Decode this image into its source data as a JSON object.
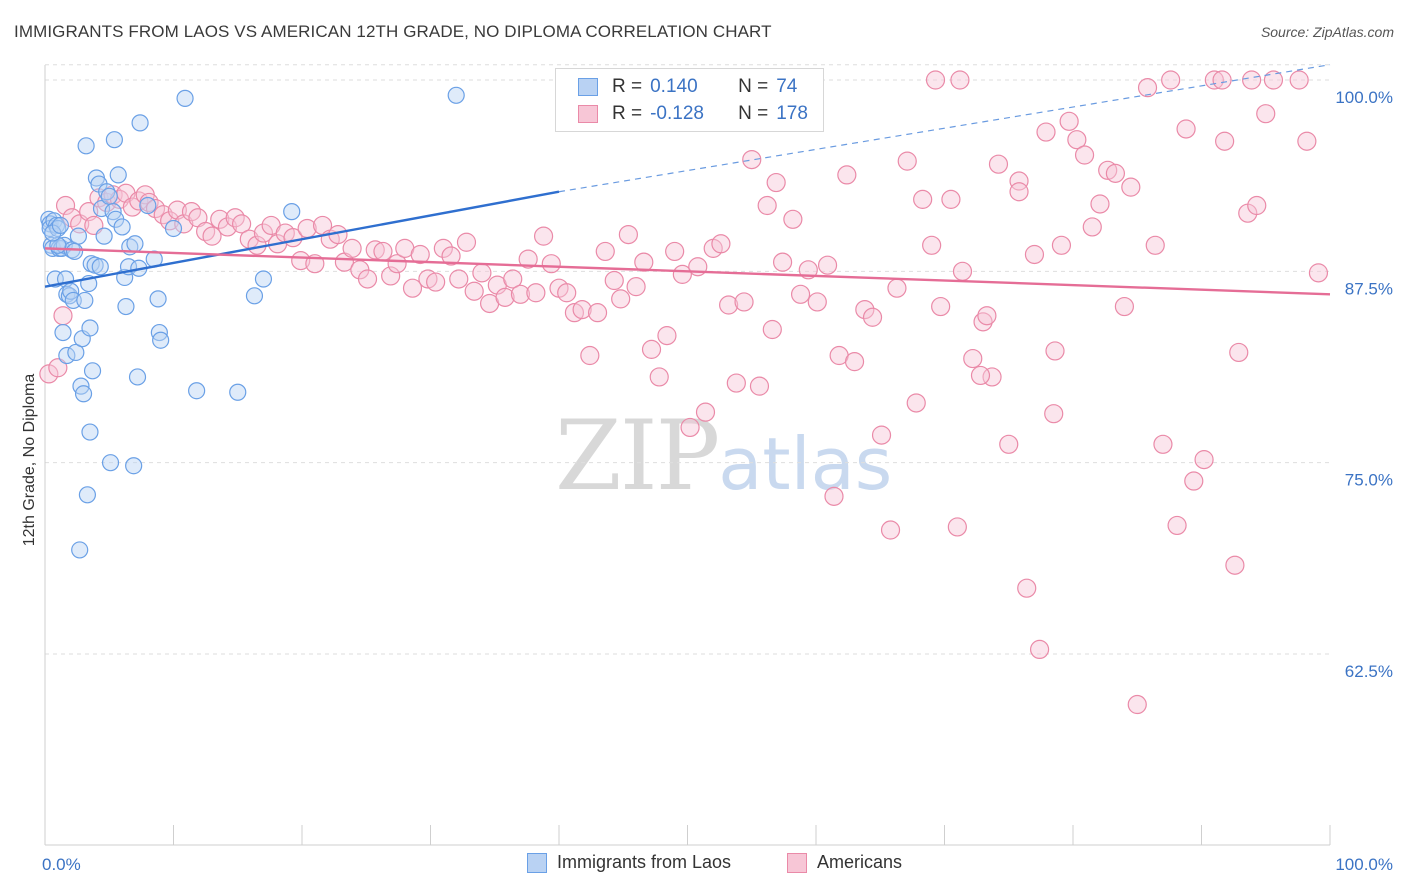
{
  "title": "IMMIGRANTS FROM LAOS VS AMERICAN 12TH GRADE, NO DIPLOMA CORRELATION CHART",
  "source": "Source: ZipAtlas.com",
  "watermark": {
    "zip": "ZIP",
    "atlas": "atlas"
  },
  "legend": {
    "r_label": "R =",
    "n_label": "N =",
    "series": [
      {
        "r": "0.140",
        "n": "74",
        "color": "#6aa0e6",
        "fill": "#b9d2f3"
      },
      {
        "r": "-0.128",
        "n": "178",
        "color": "#ea8aa8",
        "fill": "#f7c6d6"
      }
    ]
  },
  "bottom_legend": [
    "Immigrants from Laos",
    "Americans"
  ],
  "chart_data": {
    "type": "scatter",
    "title": "IMMIGRANTS FROM LAOS VS AMERICAN 12TH GRADE, NO DIPLOMA CORRELATION CHART",
    "ylabel": "12th Grade, No Diploma",
    "xlabel": "",
    "xlim": [
      0,
      100
    ],
    "ylim": [
      50,
      101
    ],
    "x_ticks": [
      "0.0%",
      "100.0%"
    ],
    "y_ticks": [
      {
        "value": 100.0,
        "label": "100.0%"
      },
      {
        "value": 87.5,
        "label": "87.5%"
      },
      {
        "value": 75.0,
        "label": "75.0%"
      },
      {
        "value": 62.5,
        "label": "62.5%"
      }
    ],
    "grid": "horizontal dashed",
    "series": [
      {
        "name": "Immigrants from Laos",
        "color": "#6aa0e6",
        "trend": {
          "x0": 0.0,
          "y0": 86.5,
          "x1": 40.0,
          "y1": 92.7,
          "x_dash_end": 100.0,
          "y_dash_end": 101.0
        },
        "points": [
          [
            0.3,
            90.9
          ],
          [
            0.4,
            90.6
          ],
          [
            0.4,
            90.3
          ],
          [
            0.5,
            89.2
          ],
          [
            0.6,
            89.0
          ],
          [
            0.7,
            90.8
          ],
          [
            0.8,
            87.0
          ],
          [
            0.9,
            90.5
          ],
          [
            1.0,
            90.3
          ],
          [
            1.1,
            89.0
          ],
          [
            1.3,
            89.0
          ],
          [
            1.4,
            83.5
          ],
          [
            1.5,
            89.2
          ],
          [
            1.6,
            87.0
          ],
          [
            1.7,
            86.0
          ],
          [
            1.7,
            82.0
          ],
          [
            1.9,
            85.9
          ],
          [
            2.0,
            86.2
          ],
          [
            2.1,
            88.9
          ],
          [
            2.2,
            85.6
          ],
          [
            2.4,
            82.2
          ],
          [
            2.6,
            89.8
          ],
          [
            2.8,
            80.0
          ],
          [
            2.9,
            83.1
          ],
          [
            3.0,
            79.5
          ],
          [
            3.1,
            85.6
          ],
          [
            3.2,
            95.7
          ],
          [
            3.3,
            72.9
          ],
          [
            3.4,
            86.7
          ],
          [
            3.5,
            77.0
          ],
          [
            3.5,
            83.8
          ],
          [
            3.6,
            88.0
          ],
          [
            3.7,
            81.0
          ],
          [
            3.9,
            87.9
          ],
          [
            4.0,
            93.6
          ],
          [
            4.2,
            93.2
          ],
          [
            4.3,
            87.8
          ],
          [
            4.4,
            91.6
          ],
          [
            4.6,
            89.8
          ],
          [
            4.8,
            92.7
          ],
          [
            5.0,
            92.4
          ],
          [
            5.1,
            75.0
          ],
          [
            5.3,
            91.4
          ],
          [
            5.5,
            90.9
          ],
          [
            5.4,
            96.1
          ],
          [
            5.7,
            93.8
          ],
          [
            6.0,
            90.4
          ],
          [
            6.2,
            87.1
          ],
          [
            6.3,
            85.2
          ],
          [
            6.5,
            87.8
          ],
          [
            6.6,
            89.1
          ],
          [
            6.9,
            74.8
          ],
          [
            7.0,
            89.3
          ],
          [
            7.2,
            80.6
          ],
          [
            7.3,
            87.7
          ],
          [
            7.4,
            97.2
          ],
          [
            8.0,
            91.8
          ],
          [
            8.5,
            88.3
          ],
          [
            8.8,
            85.7
          ],
          [
            8.9,
            83.5
          ],
          [
            9.0,
            83.0
          ],
          [
            10.0,
            90.3
          ],
          [
            10.9,
            98.8
          ],
          [
            11.8,
            79.7
          ],
          [
            15.0,
            79.6
          ],
          [
            16.3,
            85.9
          ],
          [
            17.0,
            87.0
          ],
          [
            19.2,
            91.4
          ],
          [
            32.0,
            99.0
          ],
          [
            2.7,
            69.3
          ],
          [
            1.0,
            89.2
          ],
          [
            2.3,
            88.8
          ],
          [
            0.6,
            90.0
          ],
          [
            1.2,
            90.5
          ]
        ]
      },
      {
        "name": "Americans",
        "color": "#ea8aa8",
        "trend": {
          "x0": 0.0,
          "y0": 89.0,
          "x1": 100.0,
          "y1": 86.0
        },
        "points": [
          [
            0.3,
            80.8
          ],
          [
            1.0,
            81.2
          ],
          [
            1.4,
            84.6
          ],
          [
            1.6,
            91.8
          ],
          [
            2.1,
            91.0
          ],
          [
            2.7,
            90.6
          ],
          [
            3.4,
            91.4
          ],
          [
            3.8,
            90.5
          ],
          [
            4.2,
            92.3
          ],
          [
            4.8,
            92.0
          ],
          [
            5.3,
            92.5
          ],
          [
            5.8,
            92.2
          ],
          [
            6.3,
            92.6
          ],
          [
            6.8,
            91.7
          ],
          [
            7.3,
            92.1
          ],
          [
            7.8,
            92.5
          ],
          [
            8.1,
            92.0
          ],
          [
            8.6,
            91.6
          ],
          [
            9.2,
            91.2
          ],
          [
            9.7,
            90.8
          ],
          [
            10.3,
            91.5
          ],
          [
            10.8,
            90.6
          ],
          [
            11.4,
            91.4
          ],
          [
            11.9,
            91.0
          ],
          [
            12.5,
            90.1
          ],
          [
            13.0,
            89.8
          ],
          [
            13.6,
            90.9
          ],
          [
            14.2,
            90.4
          ],
          [
            14.8,
            91.0
          ],
          [
            15.3,
            90.6
          ],
          [
            15.9,
            89.6
          ],
          [
            16.5,
            89.2
          ],
          [
            17.0,
            90.0
          ],
          [
            17.6,
            90.5
          ],
          [
            18.1,
            89.3
          ],
          [
            18.7,
            90.0
          ],
          [
            19.3,
            89.7
          ],
          [
            19.9,
            88.2
          ],
          [
            20.4,
            90.3
          ],
          [
            21.0,
            88.0
          ],
          [
            21.6,
            90.5
          ],
          [
            22.2,
            89.6
          ],
          [
            22.8,
            89.9
          ],
          [
            23.3,
            88.1
          ],
          [
            23.9,
            89.0
          ],
          [
            24.5,
            87.6
          ],
          [
            25.1,
            87.0
          ],
          [
            25.7,
            88.9
          ],
          [
            26.3,
            88.8
          ],
          [
            26.9,
            87.2
          ],
          [
            27.4,
            88.0
          ],
          [
            28.0,
            89.0
          ],
          [
            28.6,
            86.4
          ],
          [
            29.2,
            88.6
          ],
          [
            29.8,
            87.0
          ],
          [
            30.4,
            86.8
          ],
          [
            31.0,
            89.0
          ],
          [
            31.6,
            88.5
          ],
          [
            32.2,
            87.0
          ],
          [
            32.8,
            89.4
          ],
          [
            33.4,
            86.2
          ],
          [
            34.0,
            87.4
          ],
          [
            34.6,
            85.4
          ],
          [
            35.2,
            86.6
          ],
          [
            35.8,
            85.8
          ],
          [
            36.4,
            87.0
          ],
          [
            37.0,
            86.0
          ],
          [
            37.6,
            88.3
          ],
          [
            38.2,
            86.1
          ],
          [
            38.8,
            89.8
          ],
          [
            39.4,
            88.0
          ],
          [
            40.0,
            86.4
          ],
          [
            40.6,
            86.1
          ],
          [
            41.2,
            84.8
          ],
          [
            41.8,
            85.0
          ],
          [
            42.4,
            82.0
          ],
          [
            43.0,
            84.8
          ],
          [
            43.6,
            88.8
          ],
          [
            44.3,
            86.9
          ],
          [
            44.8,
            85.7
          ],
          [
            45.4,
            89.9
          ],
          [
            46.0,
            86.5
          ],
          [
            46.6,
            88.1
          ],
          [
            47.2,
            82.4
          ],
          [
            47.8,
            80.6
          ],
          [
            48.4,
            83.3
          ],
          [
            49.0,
            88.8
          ],
          [
            49.6,
            87.3
          ],
          [
            50.2,
            77.3
          ],
          [
            50.8,
            87.8
          ],
          [
            51.4,
            78.3
          ],
          [
            52.0,
            89.0
          ],
          [
            52.6,
            89.3
          ],
          [
            53.2,
            85.3
          ],
          [
            53.8,
            80.2
          ],
          [
            54.4,
            85.5
          ],
          [
            55.0,
            94.8
          ],
          [
            55.6,
            80.0
          ],
          [
            56.2,
            91.8
          ],
          [
            56.6,
            83.7
          ],
          [
            56.9,
            93.3
          ],
          [
            57.4,
            88.1
          ],
          [
            58.2,
            90.9
          ],
          [
            58.8,
            86.0
          ],
          [
            59.4,
            87.6
          ],
          [
            60.1,
            85.5
          ],
          [
            60.9,
            87.9
          ],
          [
            61.4,
            72.8
          ],
          [
            61.8,
            82.0
          ],
          [
            62.4,
            93.8
          ],
          [
            63.0,
            81.6
          ],
          [
            63.8,
            85.0
          ],
          [
            64.4,
            84.5
          ],
          [
            65.1,
            76.8
          ],
          [
            65.8,
            70.6
          ],
          [
            66.3,
            86.4
          ],
          [
            67.1,
            94.7
          ],
          [
            67.8,
            78.9
          ],
          [
            68.3,
            92.2
          ],
          [
            69.0,
            89.2
          ],
          [
            69.7,
            85.2
          ],
          [
            70.5,
            92.2
          ],
          [
            71.0,
            70.8
          ],
          [
            71.4,
            87.5
          ],
          [
            72.2,
            81.8
          ],
          [
            73.0,
            84.2
          ],
          [
            73.3,
            84.6
          ],
          [
            73.7,
            80.6
          ],
          [
            74.2,
            94.5
          ],
          [
            75.0,
            76.2
          ],
          [
            75.8,
            93.4
          ],
          [
            76.4,
            66.8
          ],
          [
            77.0,
            88.6
          ],
          [
            77.4,
            62.8
          ],
          [
            77.9,
            96.6
          ],
          [
            78.5,
            78.2
          ],
          [
            79.1,
            89.2
          ],
          [
            79.7,
            97.3
          ],
          [
            80.3,
            96.1
          ],
          [
            80.9,
            95.1
          ],
          [
            81.5,
            90.4
          ],
          [
            82.1,
            91.9
          ],
          [
            82.7,
            94.1
          ],
          [
            83.3,
            93.9
          ],
          [
            84.0,
            85.2
          ],
          [
            84.5,
            93.0
          ],
          [
            85.0,
            59.2
          ],
          [
            85.8,
            99.5
          ],
          [
            86.4,
            89.2
          ],
          [
            87.0,
            76.2
          ],
          [
            87.6,
            100.0
          ],
          [
            88.1,
            70.9
          ],
          [
            88.8,
            96.8
          ],
          [
            89.4,
            73.8
          ],
          [
            90.2,
            75.2
          ],
          [
            91.0,
            100.0
          ],
          [
            91.6,
            100.0
          ],
          [
            91.8,
            96.0
          ],
          [
            92.6,
            68.3
          ],
          [
            92.9,
            82.2
          ],
          [
            93.6,
            91.3
          ],
          [
            94.3,
            91.8
          ],
          [
            93.9,
            100.0
          ],
          [
            95.0,
            97.8
          ],
          [
            95.6,
            100.0
          ],
          [
            97.6,
            100.0
          ],
          [
            98.2,
            96.0
          ],
          [
            99.1,
            87.4
          ],
          [
            71.2,
            100.0
          ],
          [
            69.3,
            100.0
          ],
          [
            75.8,
            92.7
          ],
          [
            72.8,
            80.7
          ],
          [
            78.6,
            82.3
          ]
        ]
      }
    ]
  }
}
